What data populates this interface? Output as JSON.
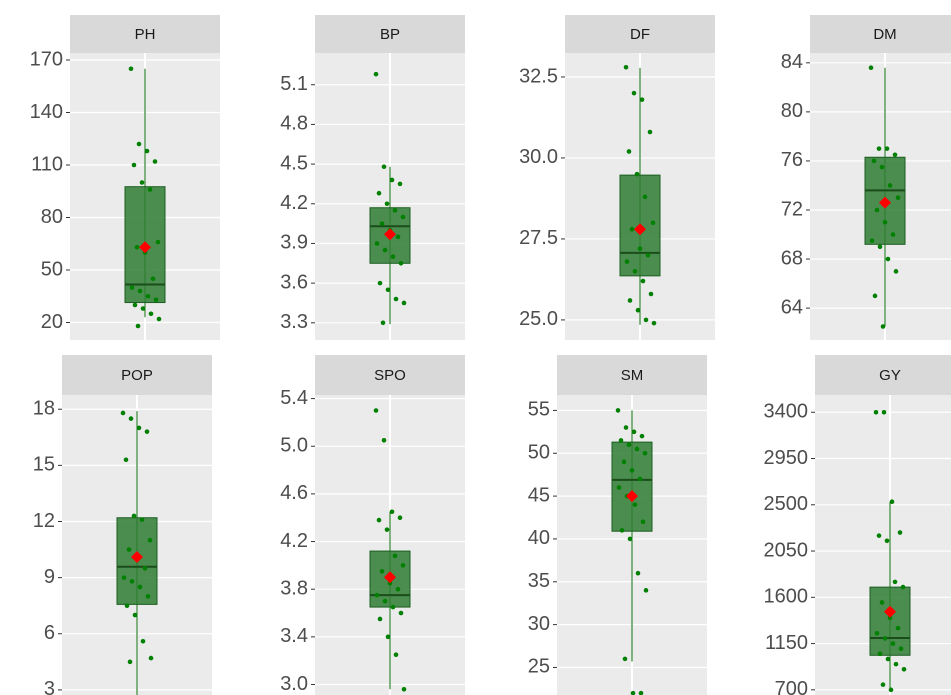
{
  "chart_data": [
    {
      "type": "box",
      "title": "PH",
      "ylim": [
        10,
        174
      ],
      "yticks": [
        20,
        50,
        80,
        110,
        140,
        170
      ],
      "box": {
        "min": 23,
        "q1": 31.4,
        "median": 41.7,
        "q3": 97.6,
        "max": 165,
        "mean": 63
      },
      "points": [
        165,
        122,
        118,
        112,
        110,
        100,
        96,
        66,
        63,
        60,
        45,
        40,
        38,
        35,
        33,
        30,
        28,
        25,
        22,
        18
      ],
      "box_color": "#2e7d32",
      "point_color": "#008000",
      "mean_color": "#ff0000"
    },
    {
      "type": "box",
      "title": "BP",
      "ylim": [
        3.17,
        5.34
      ],
      "yticks": [
        3.3,
        3.6,
        3.9,
        4.2,
        4.5,
        4.8,
        5.1
      ],
      "box": {
        "min": 3.29,
        "q1": 3.75,
        "median": 4.03,
        "q3": 4.17,
        "max": 4.48,
        "mean": 3.97
      },
      "points": [
        5.18,
        4.48,
        4.38,
        4.35,
        4.28,
        4.2,
        4.15,
        4.1,
        4.05,
        4.0,
        3.95,
        3.9,
        3.85,
        3.8,
        3.75,
        3.6,
        3.55,
        3.48,
        3.45,
        3.3
      ],
      "box_color": "#2e7d32",
      "point_color": "#008000",
      "mean_color": "#ff0000"
    },
    {
      "type": "box",
      "title": "DF",
      "ylim": [
        24.38,
        33.24
      ],
      "yticks": [
        {
          "value": 25,
          "label": "25.0"
        },
        27.5,
        {
          "value": 30,
          "label": "30.0"
        },
        32.5
      ],
      "box": {
        "min": 24.85,
        "q1": 26.36,
        "median": 27.07,
        "q3": 29.47,
        "max": 32.78,
        "mean": 27.8
      },
      "points": [
        32.8,
        32.0,
        31.8,
        30.8,
        30.2,
        29.5,
        28.8,
        28.0,
        27.8,
        27.2,
        27.0,
        26.8,
        26.5,
        26.2,
        25.8,
        25.6,
        25.3,
        25.0,
        24.9
      ],
      "box_color": "#2e7d32",
      "point_color": "#008000",
      "mean_color": "#ff0000"
    },
    {
      "type": "box",
      "title": "DM",
      "ylim": [
        61.4,
        84.8
      ],
      "yticks": [
        64,
        68,
        72,
        76,
        80,
        84
      ],
      "box": {
        "min": 62.5,
        "q1": 69.2,
        "median": 73.6,
        "q3": 76.3,
        "max": 83.6,
        "mean": 72.6
      },
      "points": [
        83.6,
        77,
        77,
        76.5,
        76,
        75.5,
        74,
        73,
        72,
        71,
        70,
        69.5,
        69,
        68,
        67,
        65,
        62.5
      ],
      "box_color": "#2e7d32",
      "point_color": "#008000",
      "mean_color": "#ff0000"
    },
    {
      "type": "box",
      "title": "POP",
      "ylim": [
        2.46,
        18.76
      ],
      "yticks": [
        3,
        6,
        9,
        12,
        15,
        18
      ],
      "box": {
        "min": 2.7,
        "q1": 7.57,
        "median": 9.58,
        "q3": 12.2,
        "max": 17.9,
        "mean": 10.1
      },
      "points": [
        17.8,
        17.5,
        17,
        16.8,
        15.3,
        12.3,
        12.1,
        11,
        10.5,
        10,
        9.5,
        9,
        8.8,
        8.5,
        8,
        7.5,
        7,
        5.6,
        4.7,
        4.5
      ],
      "box_color": "#2e7d32",
      "point_color": "#008000",
      "mean_color": "#ff0000"
    },
    {
      "type": "box",
      "title": "SPO",
      "ylim": [
        2.87,
        5.43
      ],
      "yticks": [
        {
          "value": 3,
          "label": "3.0"
        },
        3.4,
        3.8,
        4.2,
        4.6,
        {
          "value": 5,
          "label": "5.0"
        },
        5.4
      ],
      "box": {
        "min": 2.96,
        "q1": 3.65,
        "median": 3.75,
        "q3": 4.12,
        "max": 4.45,
        "mean": 3.9
      },
      "points": [
        5.3,
        5.05,
        4.45,
        4.4,
        4.38,
        4.3,
        4.08,
        4.0,
        3.95,
        3.85,
        3.8,
        3.75,
        3.7,
        3.65,
        3.6,
        3.55,
        3.4,
        3.25,
        2.96
      ],
      "box_color": "#2e7d32",
      "point_color": "#008000",
      "mean_color": "#ff0000"
    },
    {
      "type": "box",
      "title": "SM",
      "ylim": [
        21.2,
        56.8
      ],
      "yticks": [
        25,
        30,
        35,
        40,
        45,
        50,
        55
      ],
      "box": {
        "min": 25.7,
        "q1": 40.9,
        "median": 46.9,
        "q3": 51.3,
        "max": 55,
        "mean": 45
      },
      "points": [
        55,
        53,
        52.5,
        52,
        51.5,
        51,
        50.5,
        50,
        49,
        48,
        47,
        46,
        45,
        44,
        42,
        41,
        40,
        36,
        34,
        26,
        22,
        22
      ],
      "box_color": "#2e7d32",
      "point_color": "#008000",
      "mean_color": "#ff0000"
    },
    {
      "type": "box",
      "title": "GY",
      "ylim": [
        601,
        3568
      ],
      "yticks": [
        700,
        1150,
        1600,
        2050,
        2500,
        2950,
        3400
      ],
      "box": {
        "min": 700,
        "q1": 1036,
        "median": 1204,
        "q3": 1699,
        "max": 2530,
        "mean": 1460
      },
      "points": [
        3400,
        3400,
        2530,
        2230,
        2200,
        2150,
        1750,
        1700,
        1550,
        1400,
        1300,
        1250,
        1200,
        1150,
        1100,
        1050,
        1000,
        950,
        900,
        750,
        700
      ],
      "box_color": "#2e7d32",
      "point_color": "#008000",
      "mean_color": "#ff0000"
    }
  ]
}
